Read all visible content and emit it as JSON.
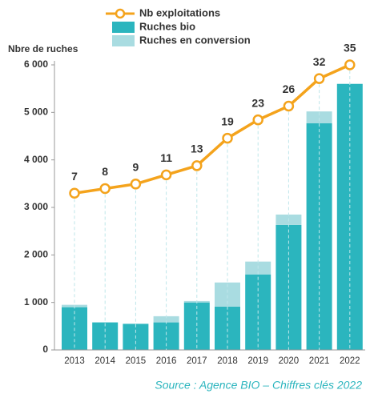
{
  "chart_data": {
    "type": "bar",
    "y_axis_label": "Nbre de ruches",
    "source": "Source : Agence BIO – Chiffres clés 2022",
    "categories": [
      "2013",
      "2014",
      "2015",
      "2016",
      "2017",
      "2018",
      "2019",
      "2020",
      "2021",
      "2022"
    ],
    "stacked": true,
    "series": [
      {
        "name": "Nb exploitations",
        "type": "line",
        "axis": "y2",
        "color": "#f4a31c",
        "values": [
          7,
          8,
          9,
          11,
          13,
          19,
          23,
          26,
          32,
          35
        ]
      },
      {
        "name": "Ruches bio",
        "type": "bar",
        "color": "#2bb5be",
        "values": [
          900,
          580,
          550,
          580,
          1000,
          910,
          1590,
          2630,
          4770,
          5600
        ]
      },
      {
        "name": "Ruches en conversion",
        "type": "bar",
        "color": "#a9dce1",
        "values": [
          50,
          0,
          0,
          130,
          30,
          510,
          270,
          220,
          250,
          0
        ]
      }
    ],
    "ylim": [
      0,
      6000
    ],
    "yticks": [
      0,
      {
        "value": 1000,
        "label": "1 000"
      },
      {
        "value": 2000,
        "label": "2 000"
      },
      {
        "value": 3000,
        "label": "3 000"
      },
      {
        "value": 4000,
        "label": "4 000"
      },
      {
        "value": 5000,
        "label": "5 000"
      },
      {
        "value": 6000,
        "label": "6 000"
      }
    ],
    "y2lim": [
      -27.2,
      35
    ]
  }
}
